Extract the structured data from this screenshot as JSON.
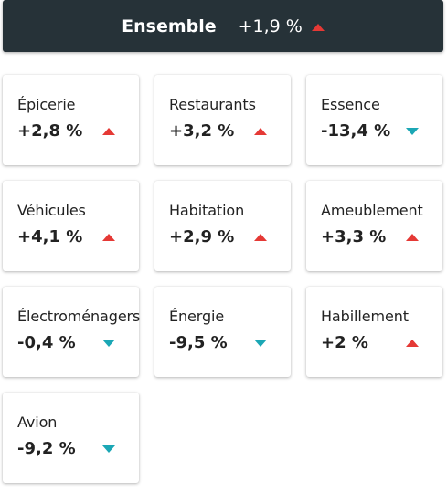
{
  "summary": {
    "label": "Ensemble",
    "value": "+1,9 %",
    "trend": "up"
  },
  "colors": {
    "up": "#e53935",
    "down": "#1ba7b5",
    "summary_bg": "#263238"
  },
  "cards": [
    {
      "label": "Épicerie",
      "value": "+2,8 %",
      "trend": "up"
    },
    {
      "label": "Restaurants",
      "value": "+3,2 %",
      "trend": "up"
    },
    {
      "label": "Essence",
      "value": "-13,4 %",
      "trend": "down"
    },
    {
      "label": "Véhicules",
      "value": "+4,1 %",
      "trend": "up"
    },
    {
      "label": "Habitation",
      "value": "+2,9 %",
      "trend": "up"
    },
    {
      "label": "Ameublement",
      "value": "+3,3 %",
      "trend": "up"
    },
    {
      "label": "Électroménagers",
      "value": "-0,4 %",
      "trend": "down"
    },
    {
      "label": "Énergie",
      "value": "-9,5 %",
      "trend": "down"
    },
    {
      "label": "Habillement",
      "value": "+2 %",
      "trend": "up"
    },
    {
      "label": "Avion",
      "value": "-9,2 %",
      "trend": "down"
    }
  ]
}
